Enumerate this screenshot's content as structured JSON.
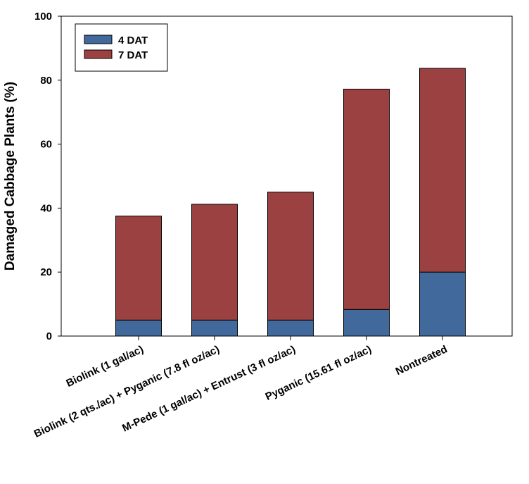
{
  "chart_data": {
    "type": "bar",
    "stacked": true,
    "categories": [
      "Biolink (1 gal/ac)",
      "Biolink  (2 qts./ac) + Pyganic (7.8 fl oz/ac)",
      "M-Pede (1 gal/ac) + Entrust (3 fl oz/ac)",
      "Pyganic (15.61 fl oz/ac)",
      "Nontreated"
    ],
    "series": [
      {
        "name": "4 DAT",
        "color": "#41699c",
        "values": [
          5,
          5,
          5,
          8.3,
          20
        ]
      },
      {
        "name": "7 DAT",
        "color": "#9c4141",
        "values": [
          32.5,
          36.2,
          40,
          68.9,
          63.7
        ]
      }
    ],
    "xlabel": "",
    "ylabel": "Damaged Cabbage Plants (%)",
    "ylim": [
      0,
      100
    ],
    "yticks": [
      0,
      20,
      40,
      60,
      80,
      100
    ],
    "grid": false,
    "legend_position": "top-left"
  }
}
